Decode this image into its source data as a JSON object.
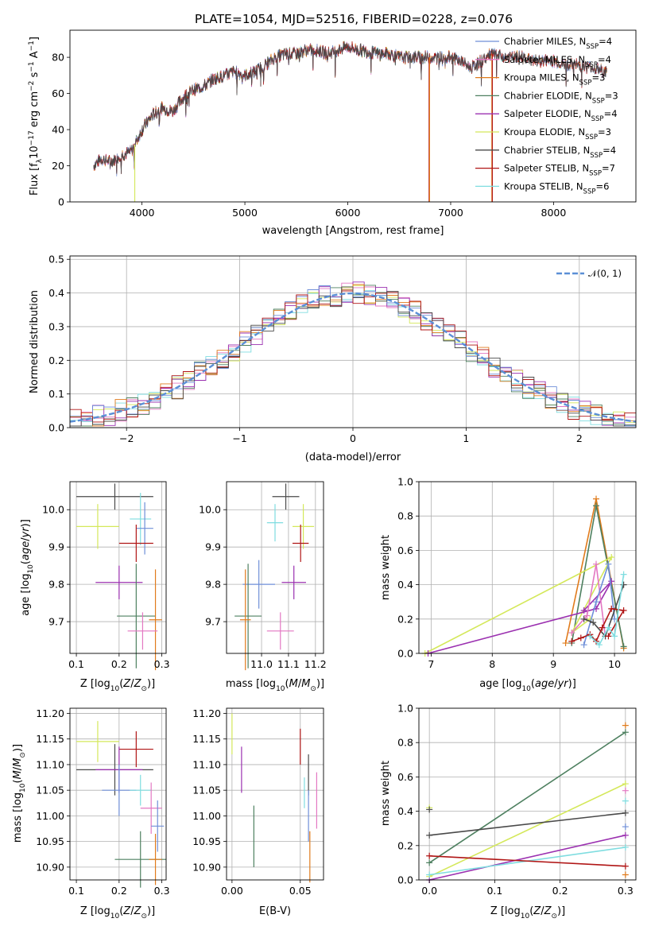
{
  "figure_title": "PLATE=1054, MJD=52516, FIBERID=0228, z=0.076",
  "colors": {
    "chabrier_miles": "#6f8fd8",
    "salpeter_miles": "#e377c2",
    "kroupa_miles": "#e07b1c",
    "chabrier_elodie": "#4e8060",
    "salpeter_elodie": "#9b30b0",
    "kroupa_elodie": "#d4e85a",
    "chabrier_stelib": "#4a4a4a",
    "salpeter_stelib": "#b01515",
    "kroupa_stelib": "#7fdde0"
  },
  "chart_data": [
    {
      "id": "spectrum",
      "type": "line",
      "title": "PLATE=1054, MJD=52516, FIBERID=0228, z=0.076",
      "xlabel": "wavelength [Angstrom, rest frame]",
      "ylabel": "Flux [fλ10⁻¹⁷ erg cm⁻² s⁻¹ A⁻¹]",
      "xlim": [
        3300,
        8800
      ],
      "ylim": [
        0,
        95
      ],
      "xticks": [
        4000,
        5000,
        6000,
        7000,
        8000
      ],
      "yticks": [
        0,
        20,
        40,
        60,
        80
      ],
      "legend_position": "top-right",
      "legend": [
        "Chabrier MILES, N_SSP=4",
        "Salpeter MILES, N_SSP=4",
        "Kroupa MILES, N_SSP=3",
        "Chabrier ELODIE, N_SSP=3",
        "Salpeter ELODIE, N_SSP=4",
        "Kroupa ELODIE, N_SSP=3",
        "Chabrier STELIB, N_SSP=4",
        "Salpeter STELIB, N_SSP=7",
        "Kroupa STELIB, N_SSP=6"
      ],
      "continuum": {
        "x": [
          3530,
          3600,
          3700,
          3800,
          3900,
          4000,
          4100,
          4200,
          4300,
          4400,
          4500,
          4600,
          4700,
          4800,
          4900,
          5000,
          5100,
          5200,
          5300,
          5400,
          5500,
          5600,
          5700,
          5800,
          5900,
          6000,
          6100,
          6200,
          6300,
          6400,
          6500,
          6600,
          6700,
          6800,
          6900,
          7000,
          7100,
          7200,
          7300,
          7400,
          7500,
          7600,
          7700,
          7800,
          7900,
          8000,
          8100,
          8200,
          8300,
          8400,
          8500
        ],
        "y": [
          20,
          24,
          22,
          26,
          28,
          40,
          48,
          52,
          50,
          58,
          62,
          64,
          68,
          70,
          72,
          70,
          72,
          76,
          80,
          82,
          82,
          84,
          84,
          82,
          84,
          86,
          84,
          83,
          82,
          82,
          80,
          80,
          80,
          80,
          80,
          80,
          78,
          74,
          78,
          82,
          80,
          80,
          80,
          78,
          78,
          78,
          76,
          76,
          75,
          74,
          72
        ]
      },
      "drops": [
        {
          "series": "salpeter_stelib",
          "x": 6790,
          "y": 0
        },
        {
          "series": "kroupa_miles",
          "x": 6795,
          "y": 0
        },
        {
          "series": "kroupa_elodie",
          "x": 3930,
          "y": 0
        },
        {
          "series": "kroupa_miles",
          "x": 7400,
          "y": 0
        },
        {
          "series": "salpeter_stelib",
          "x": 7405,
          "y": 0
        }
      ]
    },
    {
      "id": "residuals",
      "type": "histogram",
      "xlabel": "(data-model)/error",
      "ylabel": "Normed distribution",
      "xlim": [
        -2.5,
        2.5
      ],
      "ylim": [
        0,
        0.51
      ],
      "xticks": [
        -2,
        -1,
        0,
        1,
        2
      ],
      "yticks": [
        0.0,
        0.1,
        0.2,
        0.3,
        0.4,
        0.5
      ],
      "grid": true,
      "legend_position": "top-right",
      "legend": [
        "𝒩(0, 1)"
      ],
      "bin_width": 0.1
    },
    {
      "id": "age_vs_Z",
      "type": "errorbar",
      "xlabel": "Z [log₁₀(Z/Z☉)]",
      "ylabel": "age  [log₁₀(age/yr)]",
      "xlim": [
        0.085,
        0.31
      ],
      "ylim": [
        9.615,
        10.075
      ],
      "xticks": [
        0.1,
        0.2,
        0.3
      ],
      "yticks": [
        9.7,
        9.8,
        9.9,
        10.0
      ],
      "grid": true,
      "points": [
        {
          "series": "chabrier_stelib",
          "x": 0.19,
          "xerr": 0.09,
          "y": 10.035,
          "yerr": 0.035
        },
        {
          "series": "kroupa_elodie",
          "x": 0.15,
          "xerr": 0.05,
          "y": 9.955,
          "yerr": 0.06
        },
        {
          "series": "kroupa_stelib",
          "x": 0.25,
          "xerr": 0.025,
          "y": 9.975,
          "yerr": 0.07
        },
        {
          "series": "chabrier_miles",
          "x": 0.26,
          "xerr": 0.02,
          "y": 9.95,
          "yerr": 0.07
        },
        {
          "series": "salpeter_stelib",
          "x": 0.24,
          "xerr": 0.04,
          "y": 9.91,
          "yerr": 0.05
        },
        {
          "series": "salpeter_elodie",
          "x": 0.2,
          "xerr": 0.055,
          "y": 9.805,
          "yerr": 0.045
        },
        {
          "series": "chabrier_elodie",
          "x": 0.24,
          "xerr": 0.045,
          "y": 9.715,
          "yerr": 0.14
        },
        {
          "series": "kroupa_miles",
          "x": 0.285,
          "xerr": 0.015,
          "y": 9.705,
          "yerr": 0.135
        },
        {
          "series": "salpeter_miles",
          "x": 0.255,
          "xerr": 0.035,
          "y": 9.675,
          "yerr": 0.05
        }
      ]
    },
    {
      "id": "age_vs_mass",
      "type": "errorbar",
      "xlabel": "mass [log₁₀(M/M☉)]",
      "ylabel": "",
      "xlim": [
        10.87,
        11.23
      ],
      "ylim": [
        9.615,
        10.075
      ],
      "xticks": [
        11.0,
        11.1,
        11.2
      ],
      "yticks": [
        9.7,
        9.8,
        9.9,
        10.0
      ],
      "grid": true,
      "points": [
        {
          "series": "chabrier_stelib",
          "x": 11.09,
          "xerr": 0.05,
          "y": 10.035,
          "yerr": 0.035
        },
        {
          "series": "kroupa_elodie",
          "x": 11.155,
          "xerr": 0.04,
          "y": 9.955,
          "yerr": 0.06
        },
        {
          "series": "kroupa_stelib",
          "x": 11.05,
          "xerr": 0.03,
          "y": 9.965,
          "yerr": 0.05
        },
        {
          "series": "salpeter_stelib",
          "x": 11.145,
          "xerr": 0.03,
          "y": 9.91,
          "yerr": 0.05
        },
        {
          "series": "chabrier_miles",
          "x": 10.99,
          "xerr": 0.06,
          "y": 9.8,
          "yerr": 0.065
        },
        {
          "series": "salpeter_elodie",
          "x": 11.12,
          "xerr": 0.045,
          "y": 9.805,
          "yerr": 0.045
        },
        {
          "series": "chabrier_elodie",
          "x": 10.95,
          "xerr": 0.05,
          "y": 9.715,
          "yerr": 0.14
        },
        {
          "series": "kroupa_miles",
          "x": 10.94,
          "xerr": 0.02,
          "y": 9.705,
          "yerr": 0.135
        },
        {
          "series": "salpeter_miles",
          "x": 11.07,
          "xerr": 0.05,
          "y": 9.675,
          "yerr": 0.05
        }
      ]
    },
    {
      "id": "weight_vs_age",
      "type": "line",
      "xlabel": "age  [log₁₀(age/yr)]",
      "ylabel": "mass weight",
      "xlim": [
        6.8,
        10.35
      ],
      "ylim": [
        0,
        1.0
      ],
      "xticks": [
        7,
        8,
        9,
        10
      ],
      "yticks": [
        0.0,
        0.2,
        0.4,
        0.6,
        0.8,
        1.0
      ],
      "grid": true,
      "series": [
        {
          "key": "kroupa_miles",
          "x": [
            9.2,
            9.7,
            10.15
          ],
          "y": [
            0.06,
            0.9,
            0.03
          ]
        },
        {
          "key": "chabrier_elodie",
          "x": [
            9.3,
            9.7,
            10.15
          ],
          "y": [
            0.06,
            0.86,
            0.04
          ]
        },
        {
          "key": "kroupa_elodie",
          "x": [
            6.9,
            9.95,
            9.3,
            9.6
          ],
          "y": [
            0.0,
            0.56,
            0.12,
            0.2
          ]
        },
        {
          "key": "salpeter_elodie",
          "x": [
            6.95,
            9.7,
            9.95,
            9.5
          ],
          "y": [
            0.0,
            0.26,
            0.42,
            0.25
          ]
        },
        {
          "key": "salpeter_miles",
          "x": [
            9.3,
            9.55,
            9.7,
            9.85
          ],
          "y": [
            0.12,
            0.22,
            0.52,
            0.1
          ]
        },
        {
          "key": "chabrier_miles",
          "x": [
            9.5,
            9.7,
            9.9,
            10.0
          ],
          "y": [
            0.05,
            0.3,
            0.52,
            0.2
          ]
        },
        {
          "key": "chabrier_stelib",
          "x": [
            9.5,
            9.65,
            9.85,
            10.15
          ],
          "y": [
            0.2,
            0.18,
            0.1,
            0.4
          ]
        },
        {
          "key": "salpeter_stelib",
          "x": [
            9.3,
            9.45,
            9.6,
            9.7,
            9.8,
            9.95,
            10.15,
            9.9
          ],
          "y": [
            0.07,
            0.09,
            0.11,
            0.07,
            0.15,
            0.26,
            0.25,
            0.1
          ]
        },
        {
          "key": "kroupa_stelib",
          "x": [
            9.6,
            9.75,
            9.9,
            10.0,
            10.15
          ],
          "y": [
            0.1,
            0.05,
            0.15,
            0.1,
            0.46
          ]
        }
      ]
    },
    {
      "id": "mass_vs_Z",
      "type": "errorbar",
      "xlabel": "Z [log₁₀(Z/Z☉)]",
      "ylabel": "mass [log₁₀(M/M☉)]",
      "xlim": [
        0.085,
        0.31
      ],
      "ylim": [
        10.875,
        11.21
      ],
      "xticks": [
        0.1,
        0.2,
        0.3
      ],
      "yticks": [
        10.9,
        10.95,
        11.0,
        11.05,
        11.1,
        11.15,
        11.2
      ],
      "grid": true,
      "points": [
        {
          "series": "kroupa_elodie",
          "x": 0.15,
          "xerr": 0.05,
          "y": 11.145,
          "yerr": 0.04
        },
        {
          "series": "salpeter_stelib",
          "x": 0.24,
          "xerr": 0.04,
          "y": 11.13,
          "yerr": 0.035
        },
        {
          "series": "chabrier_stelib",
          "x": 0.19,
          "xerr": 0.09,
          "y": 11.09,
          "yerr": 0.05
        },
        {
          "series": "salpeter_elodie",
          "x": 0.2,
          "xerr": 0.055,
          "y": 11.09,
          "yerr": 0.045
        },
        {
          "series": "chabrier_miles",
          "x": 0.2,
          "xerr": 0.04,
          "y": 11.05,
          "yerr": 0.05
        },
        {
          "series": "kroupa_stelib",
          "x": 0.25,
          "xerr": 0.025,
          "y": 11.05,
          "yerr": 0.03
        },
        {
          "series": "salpeter_miles",
          "x": 0.275,
          "xerr": 0.025,
          "y": 11.015,
          "yerr": 0.05
        },
        {
          "series": "chabrier_miles",
          "x": 0.29,
          "xerr": 0.015,
          "y": 10.98,
          "yerr": 0.05
        },
        {
          "series": "chabrier_elodie",
          "x": 0.25,
          "xerr": 0.06,
          "y": 10.915,
          "yerr": 0.055
        },
        {
          "series": "kroupa_miles",
          "x": 0.285,
          "xerr": 0.015,
          "y": 10.915,
          "yerr": 0.05
        }
      ]
    },
    {
      "id": "mass_vs_ebv",
      "type": "errorbar",
      "xlabel": "E(B-V)",
      "ylabel": "",
      "xlim": [
        -0.004,
        0.067
      ],
      "ylim": [
        10.875,
        11.21
      ],
      "xticks": [
        0.0,
        0.05
      ],
      "yticks": [
        10.9,
        10.95,
        11.0,
        11.05,
        11.1,
        11.15,
        11.2
      ],
      "grid": true,
      "points": [
        {
          "series": "kroupa_elodie",
          "x": 0.0,
          "xerr": 0,
          "y": 11.16,
          "yerr": 0.04
        },
        {
          "series": "salpeter_elodie",
          "x": 0.007,
          "xerr": 0,
          "y": 11.09,
          "yerr": 0.045
        },
        {
          "series": "chabrier_elodie",
          "x": 0.016,
          "xerr": 0,
          "y": 10.96,
          "yerr": 0.06
        },
        {
          "series": "salpeter_stelib",
          "x": 0.05,
          "xerr": 0,
          "y": 11.135,
          "yerr": 0.035
        },
        {
          "series": "kroupa_stelib",
          "x": 0.053,
          "xerr": 0,
          "y": 11.045,
          "yerr": 0.03
        },
        {
          "series": "chabrier_stelib",
          "x": 0.056,
          "xerr": 0,
          "y": 11.08,
          "yerr": 0.04
        },
        {
          "series": "chabrier_miles",
          "x": 0.056,
          "xerr": 0,
          "y": 11.0,
          "yerr": 0.05
        },
        {
          "series": "kroupa_miles",
          "x": 0.057,
          "xerr": 0,
          "y": 10.92,
          "yerr": 0.05
        },
        {
          "series": "salpeter_miles",
          "x": 0.062,
          "xerr": 0,
          "y": 11.03,
          "yerr": 0.055
        }
      ]
    },
    {
      "id": "weight_vs_Z",
      "type": "line",
      "xlabel": "Z [log₁₀(Z/Z☉)]",
      "ylabel": "mass weight",
      "xlim": [
        -0.016,
        0.316
      ],
      "ylim": [
        0,
        1.0
      ],
      "xticks": [
        0.0,
        0.1,
        0.2,
        0.3
      ],
      "yticks": [
        0.0,
        0.2,
        0.4,
        0.6,
        0.8,
        1.0
      ],
      "grid": true,
      "series": [
        {
          "key": "chabrier_elodie",
          "x": [
            0.0,
            0.3
          ],
          "y": [
            0.1,
            0.86
          ]
        },
        {
          "key": "kroupa_elodie",
          "x": [
            0.0,
            0.3
          ],
          "y": [
            0.02,
            0.56
          ]
        },
        {
          "key": "chabrier_stelib",
          "x": [
            0.0,
            0.3
          ],
          "y": [
            0.26,
            0.39
          ]
        },
        {
          "key": "salpeter_elodie",
          "x": [
            0.0,
            0.3
          ],
          "y": [
            0.0,
            0.26
          ]
        },
        {
          "key": "kroupa_stelib",
          "x": [
            0.0,
            0.3
          ],
          "y": [
            0.03,
            0.19
          ]
        },
        {
          "key": "salpeter_stelib",
          "x": [
            0.0,
            0.3
          ],
          "y": [
            0.14,
            0.08
          ]
        }
      ],
      "markers": [
        {
          "key": "kroupa_miles",
          "x": 0.3,
          "y": 0.9
        },
        {
          "key": "kroupa_miles",
          "x": 0.3,
          "y": 0.03
        },
        {
          "key": "kroupa_elodie",
          "x": 0.0,
          "y": 0.42
        },
        {
          "key": "chabrier_stelib",
          "x": 0.0,
          "y": 0.41
        },
        {
          "key": "salpeter_miles",
          "x": 0.3,
          "y": 0.52
        },
        {
          "key": "kroupa_stelib",
          "x": 0.3,
          "y": 0.46
        },
        {
          "key": "chabrier_miles",
          "x": 0.3,
          "y": 0.31
        }
      ]
    }
  ]
}
